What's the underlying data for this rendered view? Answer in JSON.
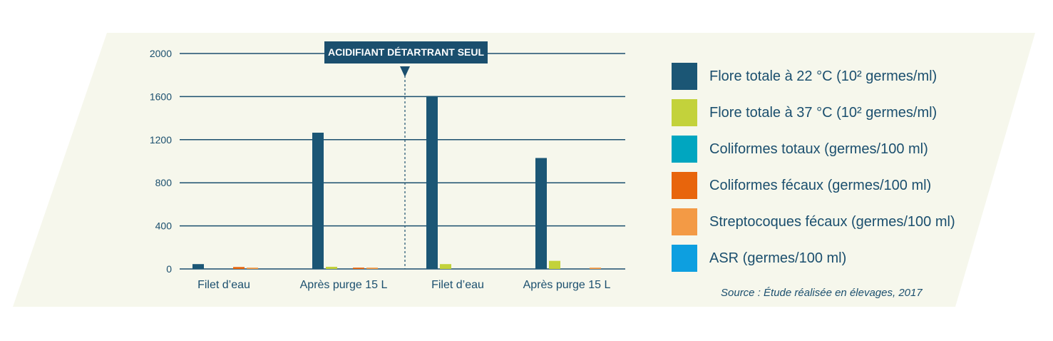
{
  "chart_data": {
    "type": "bar",
    "categories": [
      "Filet d’eau",
      "Après purge 15 L",
      "Filet d’eau",
      "Après purge 15 L"
    ],
    "ylim": [
      0,
      2000
    ],
    "yticks": [
      0,
      400,
      800,
      1200,
      1600,
      2000
    ],
    "grid": true,
    "legend_placement": "right",
    "series": [
      {
        "name": "Flore totale à 22 °C (10² germes/ml)",
        "color": "#1b5675",
        "values": [
          45,
          1265,
          1605,
          1030
        ]
      },
      {
        "name": "Flore totale à 37 °C (10² germes/ml)",
        "color": "#c3d23b",
        "values": [
          0,
          20,
          45,
          75
        ]
      },
      {
        "name": "Coliformes totaux (germes/100 ml)",
        "color": "#00a6c0",
        "values": [
          0,
          0,
          0,
          0
        ]
      },
      {
        "name": "Coliformes fécaux (germes/100 ml)",
        "color": "#e8650c",
        "values": [
          18,
          12,
          0,
          0
        ]
      },
      {
        "name": "Streptocoques fécaux (germes/100 ml)",
        "color": "#f39a45",
        "values": [
          12,
          12,
          0,
          12
        ]
      },
      {
        "name": "ASR (germes/100 ml)",
        "color": "#0d9fe0",
        "values": [
          0,
          0,
          0,
          0
        ]
      }
    ],
    "annotation": "ACIDIFIANT DÉTARTRANT SEUL",
    "source": "Source : Étude réalisée en élevages, 2017"
  },
  "colors": {
    "background": "#f6f7ec",
    "gridline": "#1b4f6e",
    "text": "#1b4f6e"
  }
}
